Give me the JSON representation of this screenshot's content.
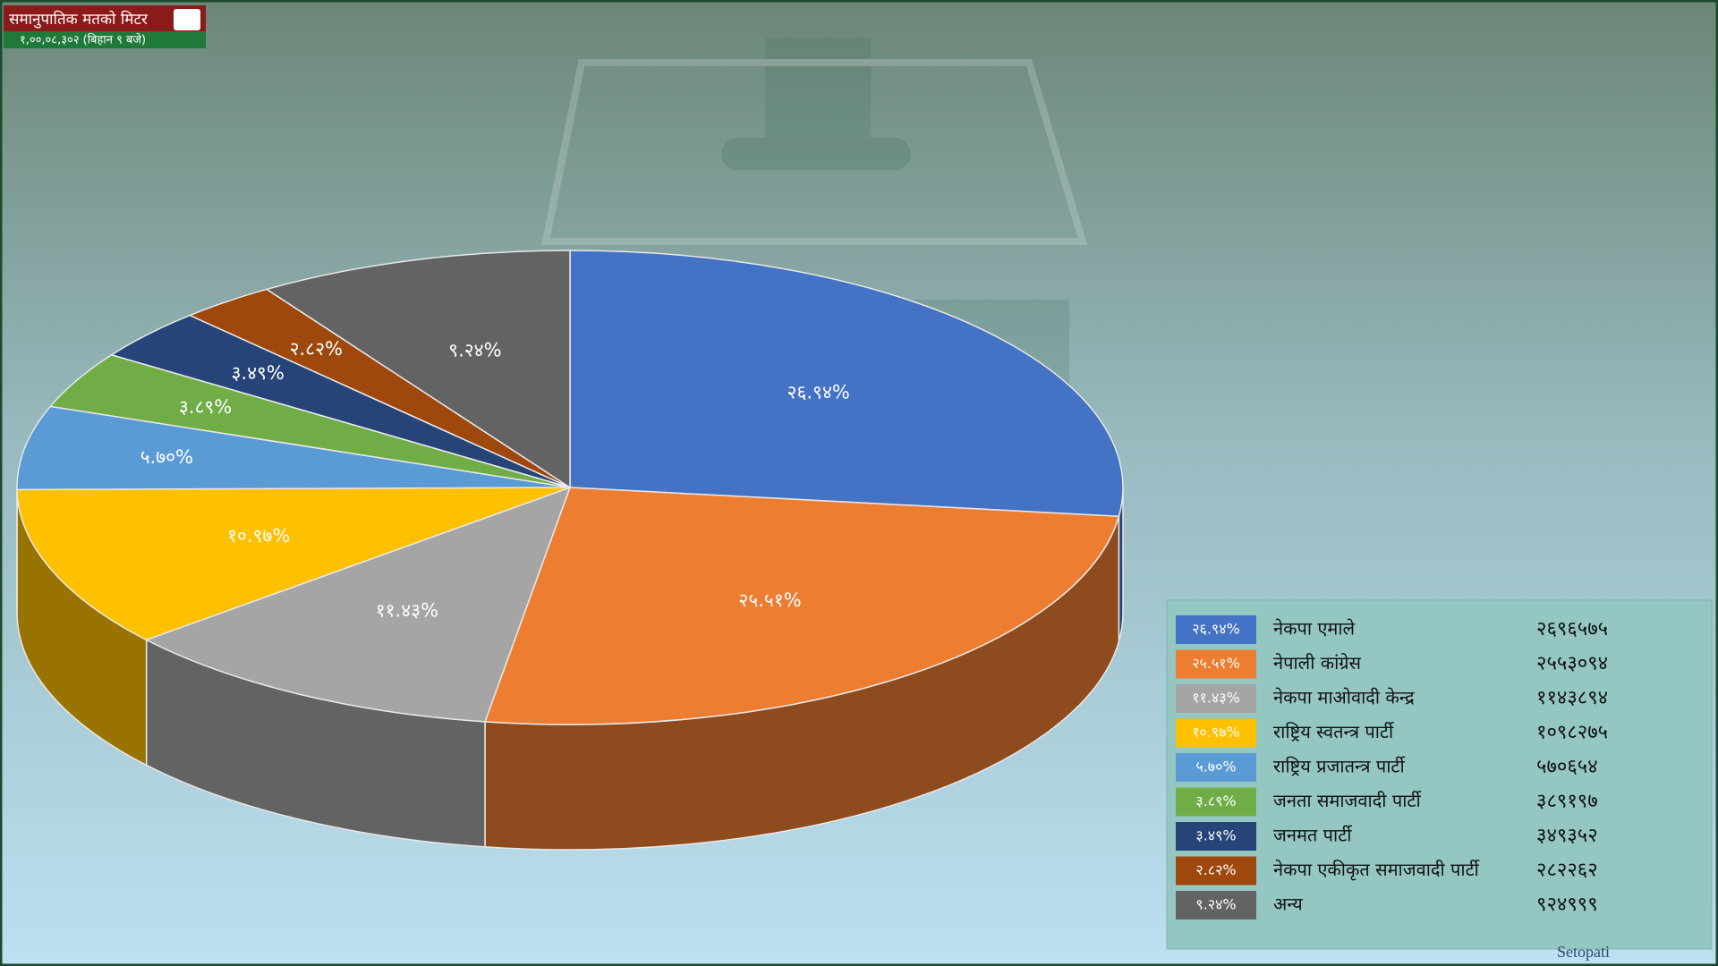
{
  "chart_data": {
    "type": "pie3d",
    "title": "समानुपातिक मतको मिटर",
    "subtitle": "१,००,०८,३०२ (बिहान ९ बजे)",
    "categories": [
      "नेकपा एमाले",
      "नेपाली कांग्रेस",
      "नेकपा माओवादी केन्द्र",
      "राष्ट्रिय स्वतन्त्र पार्टी",
      "राष्ट्रिय प्रजातन्त्र पार्टी",
      "जनता समाजवादी पार्टी",
      "जनमत पार्टी",
      "नेकपा एकीकृत समाजवादी पार्टी",
      "अन्य"
    ],
    "values": [
      26.94,
      25.51,
      11.43,
      10.97,
      5.7,
      3.89,
      3.49,
      2.82,
      9.24
    ],
    "value_labels": [
      "२६.९४%",
      "२५.५१%",
      "११.४३%",
      "१०.९७%",
      "५.७०%",
      "३.८९%",
      "३.४९%",
      "२.८२%",
      "९.२४%"
    ],
    "vote_labels": [
      "२६९६५७५",
      "२५५३०९४",
      "११४३८९४",
      "१०९८२७५",
      "५७०६५४",
      "३८९१९७",
      "३४९३५२",
      "२८२२६२",
      "९२४९९९"
    ],
    "colors": [
      "#4472c4",
      "#ed7d31",
      "#a5a5a5",
      "#ffc000",
      "#5b9bd5",
      "#70ad47",
      "#264478",
      "#9e480e",
      "#636363"
    ],
    "legend": "bottom-right",
    "watermark": "Setopati"
  }
}
